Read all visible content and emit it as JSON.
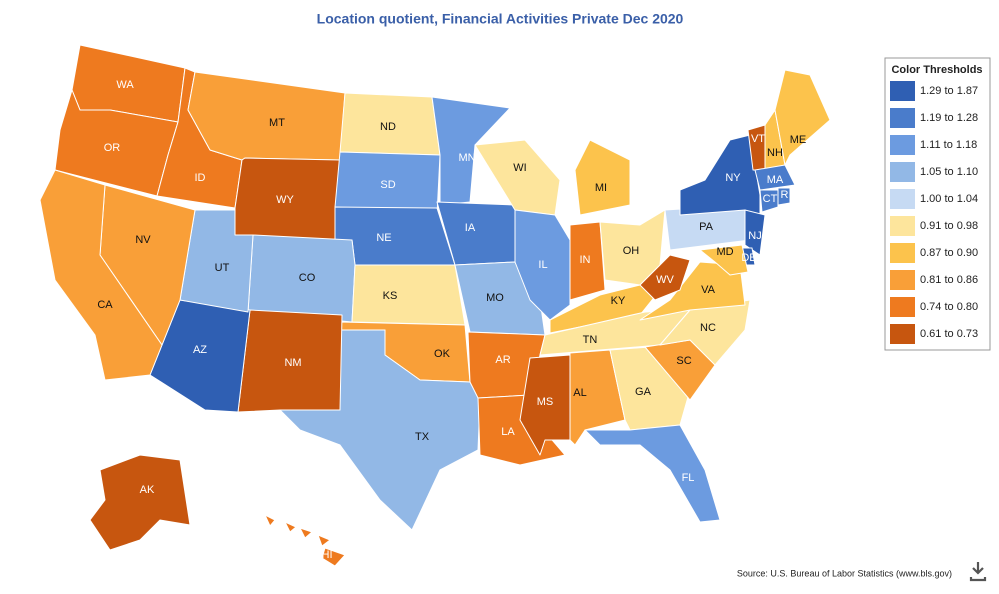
{
  "title": "Location quotient, Financial Activities Private Dec 2020",
  "legend": {
    "title": "Color Thresholds",
    "items": [
      {
        "label": "1.29 to 1.87",
        "color": "#2f5fb3"
      },
      {
        "label": "1.19 to 1.28",
        "color": "#4a7ccb"
      },
      {
        "label": "1.11 to 1.18",
        "color": "#6c9be0"
      },
      {
        "label": "1.05 to 1.10",
        "color": "#92b8e6"
      },
      {
        "label": "1.00 to 1.04",
        "color": "#c6daf3"
      },
      {
        "label": "0.91 to 0.98",
        "color": "#fde59c"
      },
      {
        "label": "0.87 to 0.90",
        "color": "#fcc34c"
      },
      {
        "label": "0.81 to 0.86",
        "color": "#f99f38"
      },
      {
        "label": "0.74 to 0.80",
        "color": "#ee7a1f"
      },
      {
        "label": "0.61 to 0.73",
        "color": "#c7560f"
      }
    ]
  },
  "states": [
    {
      "label": "WA",
      "color": "#ee7a1f"
    },
    {
      "label": "OR",
      "color": "#ee7a1f"
    },
    {
      "label": "ID",
      "color": "#ee7a1f"
    },
    {
      "label": "MT",
      "color": "#f99f38"
    },
    {
      "label": "WY",
      "color": "#c7560f"
    },
    {
      "label": "ND",
      "color": "#fde59c"
    },
    {
      "label": "SD",
      "color": "#6c9be0"
    },
    {
      "label": "NE",
      "color": "#4a7ccb"
    },
    {
      "label": "CO",
      "color": "#92b8e6"
    },
    {
      "label": "KS",
      "color": "#fde59c"
    },
    {
      "label": "OK",
      "color": "#f99f38"
    },
    {
      "label": "TX",
      "color": "#92b8e6"
    },
    {
      "label": "NM",
      "color": "#c7560f"
    },
    {
      "label": "AZ",
      "color": "#2f5fb3"
    },
    {
      "label": "UT",
      "color": "#92b8e6"
    },
    {
      "label": "NV",
      "color": "#f99f38"
    },
    {
      "label": "CA",
      "color": "#f99f38"
    },
    {
      "label": "MN",
      "color": "#6c9be0"
    },
    {
      "label": "IA",
      "color": "#4a7ccb"
    },
    {
      "label": "MO",
      "color": "#92b8e6"
    },
    {
      "label": "AR",
      "color": "#ee7a1f"
    },
    {
      "label": "LA",
      "color": "#ee7a1f"
    },
    {
      "label": "WI",
      "color": "#fde59c"
    },
    {
      "label": "IL",
      "color": "#6c9be0"
    },
    {
      "label": "MI",
      "color": "#fcc34c"
    },
    {
      "label": "IN",
      "color": "#ee7a1f"
    },
    {
      "label": "OH",
      "color": "#fde59c"
    },
    {
      "label": "KY",
      "color": "#fcc34c"
    },
    {
      "label": "TN",
      "color": "#fde59c"
    },
    {
      "label": "MS",
      "color": "#c7560f"
    },
    {
      "label": "AL",
      "color": "#f99f38"
    },
    {
      "label": "GA",
      "color": "#fde59c"
    },
    {
      "label": "FL",
      "color": "#6c9be0"
    },
    {
      "label": "SC",
      "color": "#f99f38"
    },
    {
      "label": "NC",
      "color": "#fde59c"
    },
    {
      "label": "VA",
      "color": "#fcc34c"
    },
    {
      "label": "WV",
      "color": "#c7560f"
    },
    {
      "label": "PA",
      "color": "#c6daf3"
    },
    {
      "label": "NY",
      "color": "#2f5fb3"
    },
    {
      "label": "VT",
      "color": "#c7560f"
    },
    {
      "label": "NH",
      "color": "#fcc34c"
    },
    {
      "label": "ME",
      "color": "#fcc34c"
    },
    {
      "label": "MA",
      "color": "#4a7ccb"
    },
    {
      "label": "CT",
      "color": "#4a7ccb"
    },
    {
      "label": "RI",
      "color": "#4a7ccb"
    },
    {
      "label": "NJ",
      "color": "#2f5fb3"
    },
    {
      "label": "DE",
      "color": "#2f5fb3"
    },
    {
      "label": "MD",
      "color": "#fcc34c"
    },
    {
      "label": "AK",
      "color": "#c7560f"
    },
    {
      "label": "HI",
      "color": "#ee7a1f"
    }
  ],
  "source": "Source: U.S. Bureau of Labor Statistics (www.bls.gov)"
}
